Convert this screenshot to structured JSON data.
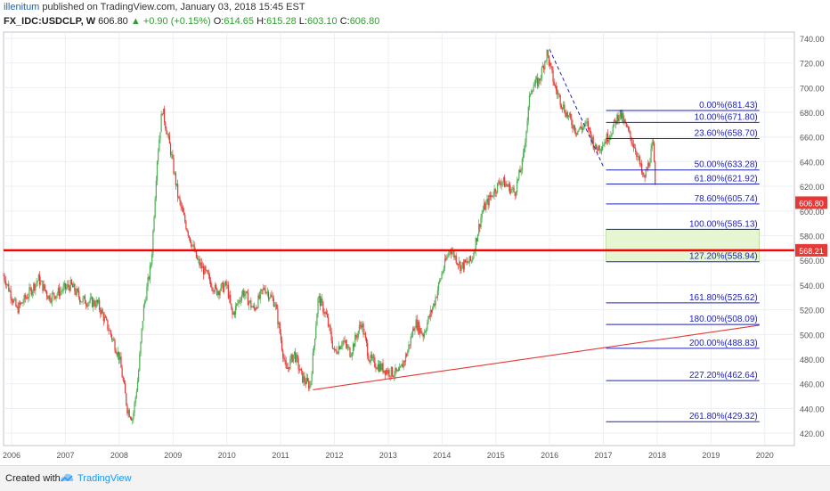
{
  "header": {
    "author": "illenitum",
    "published": "published on TradingView.com, January 03, 2018 15:45 EST",
    "symbol": "FX_IDC:USDCLP, W",
    "price": "606.80",
    "change": "▲ +0.90 (+0.15%)",
    "o_label": "O:",
    "o": "614.65",
    "h_label": "H:",
    "h": "615.28",
    "l_label": "L:",
    "l": "603.10",
    "c_label": "C:",
    "c": "606.80"
  },
  "footer": {
    "created_with": "Created with",
    "brand": "TradingView"
  },
  "colors": {
    "up": "#4caf50",
    "down": "#e53935",
    "fib": "#1e22b8",
    "hline": "#ff0000",
    "trend": "#e53935",
    "zone": "#e6f6d3",
    "price_badge": "#e53935"
  },
  "chart_data": {
    "type": "candlestick",
    "x_ticks": [
      "2006",
      "2007",
      "2008",
      "2009",
      "2010",
      "2011",
      "2012",
      "2013",
      "2014",
      "2015",
      "2016",
      "2017",
      "2018",
      "2019",
      "2020"
    ],
    "y_ticks": [
      420,
      440,
      460,
      480,
      500,
      520,
      540,
      560,
      580,
      600,
      620,
      640,
      660,
      680,
      700,
      720,
      740
    ],
    "ylim": [
      410,
      745
    ],
    "price_path": [
      [
        2005.85,
        548
      ],
      [
        2006.1,
        520
      ],
      [
        2006.3,
        532
      ],
      [
        2006.5,
        545
      ],
      [
        2006.7,
        530
      ],
      [
        2006.9,
        535
      ],
      [
        2007.1,
        540
      ],
      [
        2007.3,
        528
      ],
      [
        2007.6,
        525
      ],
      [
        2007.8,
        505
      ],
      [
        2008.0,
        482
      ],
      [
        2008.15,
        440
      ],
      [
        2008.25,
        432
      ],
      [
        2008.35,
        465
      ],
      [
        2008.45,
        520
      ],
      [
        2008.6,
        560
      ],
      [
        2008.7,
        640
      ],
      [
        2008.8,
        683
      ],
      [
        2008.95,
        650
      ],
      [
        2009.1,
        610
      ],
      [
        2009.3,
        580
      ],
      [
        2009.45,
        560
      ],
      [
        2009.6,
        550
      ],
      [
        2009.8,
        535
      ],
      [
        2010.0,
        540
      ],
      [
        2010.1,
        515
      ],
      [
        2010.3,
        535
      ],
      [
        2010.5,
        520
      ],
      [
        2010.7,
        538
      ],
      [
        2010.9,
        525
      ],
      [
        2011.1,
        470
      ],
      [
        2011.25,
        485
      ],
      [
        2011.4,
        465
      ],
      [
        2011.55,
        458
      ],
      [
        2011.7,
        530
      ],
      [
        2011.85,
        515
      ],
      [
        2012.0,
        485
      ],
      [
        2012.15,
        495
      ],
      [
        2012.3,
        485
      ],
      [
        2012.5,
        510
      ],
      [
        2012.65,
        480
      ],
      [
        2012.8,
        475
      ],
      [
        2013.0,
        470
      ],
      [
        2013.2,
        468
      ],
      [
        2013.35,
        485
      ],
      [
        2013.5,
        510
      ],
      [
        2013.65,
        500
      ],
      [
        2013.85,
        525
      ],
      [
        2014.0,
        550
      ],
      [
        2014.15,
        570
      ],
      [
        2014.35,
        555
      ],
      [
        2014.55,
        560
      ],
      [
        2014.75,
        600
      ],
      [
        2014.95,
        615
      ],
      [
        2015.1,
        625
      ],
      [
        2015.35,
        615
      ],
      [
        2015.5,
        640
      ],
      [
        2015.65,
        700
      ],
      [
        2015.8,
        705
      ],
      [
        2015.95,
        728
      ],
      [
        2016.1,
        700
      ],
      [
        2016.3,
        680
      ],
      [
        2016.5,
        665
      ],
      [
        2016.7,
        670
      ],
      [
        2016.85,
        650
      ],
      [
        2017.0,
        655
      ],
      [
        2017.15,
        665
      ],
      [
        2017.3,
        680
      ],
      [
        2017.45,
        665
      ],
      [
        2017.6,
        650
      ],
      [
        2017.75,
        625
      ],
      [
        2017.85,
        640
      ],
      [
        2017.92,
        655
      ],
      [
        2017.98,
        607
      ]
    ],
    "horizontal_line": 568.21,
    "price_labels": {
      "current": "606.80",
      "line": "568.21"
    },
    "trendline": [
      [
        2011.6,
        455.2
      ],
      [
        2019.9,
        507.5
      ]
    ],
    "dashed_trend": [
      [
        2016.0,
        731
      ],
      [
        2017.0,
        636
      ]
    ],
    "fib_levels": [
      {
        "label": "0.00%(681.43)",
        "value": 681.43
      },
      {
        "label": "10.00%(671.80)",
        "value": 671.8
      },
      {
        "label": "23.60%(658.70)",
        "value": 658.7
      },
      {
        "label": "50.00%(633.28)",
        "value": 633.28
      },
      {
        "label": "61.80%(621.92)",
        "value": 621.92
      },
      {
        "label": "78.60%(605.74)",
        "value": 605.74
      },
      {
        "label": "100.00%(585.13)",
        "value": 585.13
      },
      {
        "label": "127.20%(558.94)",
        "value": 558.94
      },
      {
        "label": "161.80%(525.62)",
        "value": 525.62
      },
      {
        "label": "180.00%(508.09)",
        "value": 508.09
      },
      {
        "label": "200.00%(488.83)",
        "value": 488.83
      },
      {
        "label": "227.20%(462.64)",
        "value": 462.64
      },
      {
        "label": "261.80%(429.32)",
        "value": 429.32
      }
    ],
    "fib_range": [
      2017.05,
      2019.9
    ],
    "zone": {
      "x": [
        2017.05,
        2019.9
      ],
      "y": [
        558.94,
        585.13
      ]
    }
  }
}
